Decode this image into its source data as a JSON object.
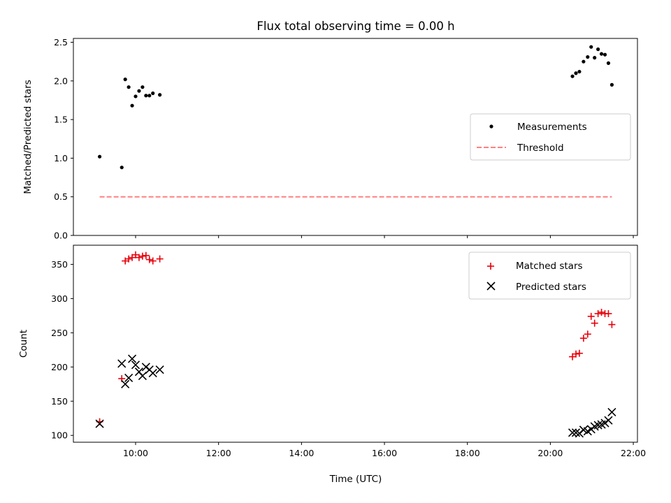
{
  "chart_data": {
    "title": "Flux total observing time = 0.00 h",
    "xlabel": "Time (UTC)",
    "x_tick_labels": [
      "10:00",
      "12:00",
      "14:00",
      "16:00",
      "18:00",
      "20:00",
      "22:00"
    ],
    "x_tick_hours": [
      10,
      12,
      14,
      16,
      18,
      20,
      22
    ],
    "xlim_hours": [
      8.5,
      22.1
    ],
    "colors": {
      "measurements": "#000000",
      "threshold": "#ff8080",
      "matched": "#e8000b",
      "predicted": "#000000"
    },
    "panels": [
      {
        "type": "scatter",
        "ylabel": "Matched/Predicted stars",
        "ylim": [
          0,
          2.55
        ],
        "y_ticks": [
          0.0,
          0.5,
          1.0,
          1.5,
          2.0,
          2.5
        ],
        "y_tick_labels": [
          "0.0",
          "0.5",
          "1.0",
          "1.5",
          "2.0",
          "2.5"
        ],
        "legend": {
          "position": "right",
          "entries": [
            "Measurements",
            "Threshold"
          ]
        },
        "series": [
          {
            "name": "Measurements",
            "marker": "dot",
            "x": [
              "09:08",
              "09:40",
              "09:45",
              "09:50",
              "09:55",
              "10:00",
              "10:05",
              "10:10",
              "10:15",
              "10:20",
              "10:25",
              "10:35",
              "20:32",
              "20:37",
              "20:42",
              "20:48",
              "20:54",
              "20:59",
              "21:04",
              "21:09",
              "21:14",
              "21:19",
              "21:24",
              "21:29"
            ],
            "values": [
              1.02,
              0.88,
              2.02,
              1.92,
              1.68,
              1.8,
              1.87,
              1.92,
              1.81,
              1.81,
              1.84,
              1.82,
              2.06,
              2.1,
              2.12,
              2.25,
              2.31,
              2.44,
              2.3,
              2.41,
              2.35,
              2.34,
              2.23,
              1.95
            ]
          },
          {
            "name": "Threshold",
            "style": "dashed",
            "x": [
              "09:08",
              "21:29"
            ],
            "values": [
              0.5,
              0.5
            ]
          }
        ]
      },
      {
        "type": "scatter",
        "ylabel": "Count",
        "ylim": [
          90,
          378
        ],
        "y_ticks": [
          100,
          150,
          200,
          250,
          300,
          350
        ],
        "y_tick_labels": [
          "100",
          "150",
          "200",
          "250",
          "300",
          "350"
        ],
        "legend": {
          "position": "top-right",
          "entries": [
            "Matched stars",
            "Predicted stars"
          ]
        },
        "series": [
          {
            "name": "Matched stars",
            "marker": "plus",
            "x": [
              "09:08",
              "09:40",
              "09:45",
              "09:50",
              "09:55",
              "10:00",
              "10:05",
              "10:10",
              "10:15",
              "10:20",
              "10:25",
              "10:35",
              "20:32",
              "20:37",
              "20:42",
              "20:48",
              "20:54",
              "20:59",
              "21:04",
              "21:09",
              "21:14",
              "21:19",
              "21:24",
              "21:29"
            ],
            "values": [
              120,
              183,
              355,
              358,
              360,
              364,
              360,
              362,
              363,
              357,
              355,
              358,
              215,
              219,
              220,
              242,
              248,
              274,
              264,
              278,
              280,
              278,
              278,
              262
            ]
          },
          {
            "name": "Predicted stars",
            "marker": "x",
            "x": [
              "09:08",
              "09:40",
              "09:45",
              "09:50",
              "09:55",
              "10:00",
              "10:05",
              "10:10",
              "10:15",
              "10:20",
              "10:25",
              "10:35",
              "20:32",
              "20:37",
              "20:42",
              "20:48",
              "20:54",
              "20:59",
              "21:04",
              "21:09",
              "21:14",
              "21:19",
              "21:24",
              "21:29"
            ],
            "values": [
              117,
              205,
              175,
              184,
              212,
              203,
              193,
              187,
              200,
              196,
              191,
              196,
              104,
              104,
              103,
              108,
              106,
              109,
              113,
              115,
              116,
              118,
              122,
              134
            ]
          }
        ]
      }
    ]
  }
}
